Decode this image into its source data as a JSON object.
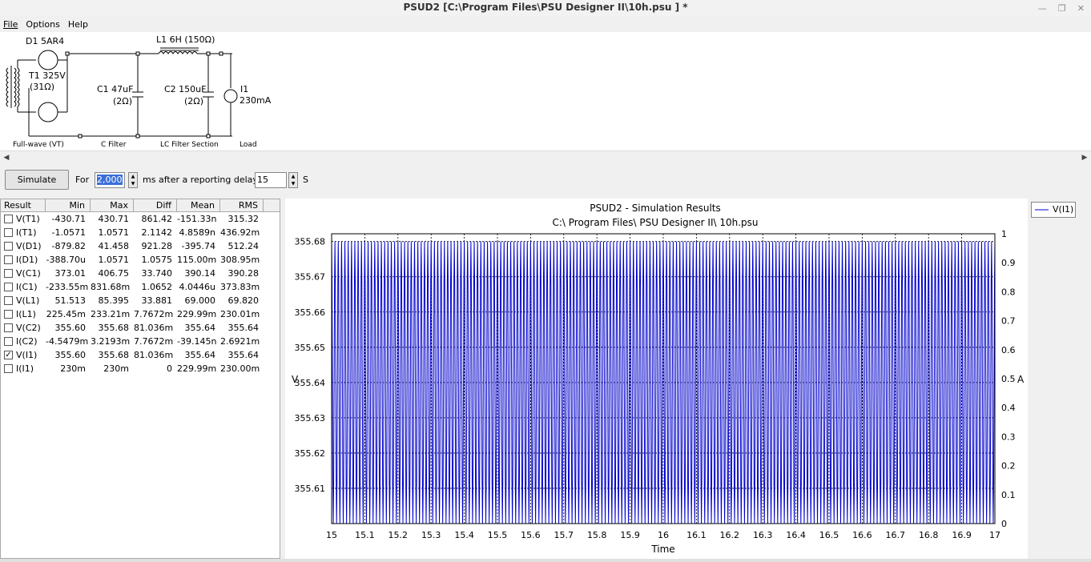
{
  "window": {
    "title": "PSUD2  [C:\\Program Files\\PSU Designer II\\10h.psu ] *"
  },
  "menu": {
    "items": [
      "File",
      "Options",
      "Help"
    ]
  },
  "schematic": {
    "rectifier": {
      "tube_label": "D1 5AR4",
      "transformer_label": "T1 325V",
      "transformer_res": "(31Ω)",
      "section_label": "Full-wave (VT)"
    },
    "c1": {
      "label": "C1 47uF",
      "res": "(2Ω)",
      "section_label": "C Filter"
    },
    "l1": {
      "label": "L1 6H (150Ω)"
    },
    "c2": {
      "label": "C2 150uF",
      "res": "(2Ω)",
      "section_label": "LC Filter Section"
    },
    "load": {
      "label": "I1",
      "value": "230mA",
      "section_label": "Load"
    }
  },
  "toolbar": {
    "simulate_label": "Simulate",
    "for_label": "For",
    "duration_value": "2,000",
    "ms_label": "ms",
    "delay_label": "after a reporting delay of",
    "delay_value": "15",
    "s_label": "S"
  },
  "results": {
    "headers": [
      "Result",
      "Min",
      "Max",
      "Diff",
      "Mean",
      "RMS"
    ],
    "rows": [
      {
        "name": "V(T1)",
        "checked": false,
        "min": "-430.71",
        "max": "430.71",
        "diff": "861.42",
        "mean": "-151.33n",
        "rms": "315.32"
      },
      {
        "name": "I(T1)",
        "checked": false,
        "min": "-1.0571",
        "max": "1.0571",
        "diff": "2.1142",
        "mean": "4.8589n",
        "rms": "436.92m"
      },
      {
        "name": "V(D1)",
        "checked": false,
        "min": "-879.82",
        "max": "41.458",
        "diff": "921.28",
        "mean": "-395.74",
        "rms": "512.24"
      },
      {
        "name": "I(D1)",
        "checked": false,
        "min": "-388.70u",
        "max": "1.0571",
        "diff": "1.0575",
        "mean": "115.00m",
        "rms": "308.95m"
      },
      {
        "name": "V(C1)",
        "checked": false,
        "min": "373.01",
        "max": "406.75",
        "diff": "33.740",
        "mean": "390.14",
        "rms": "390.28"
      },
      {
        "name": "I(C1)",
        "checked": false,
        "min": "-233.55m",
        "max": "831.68m",
        "diff": "1.0652",
        "mean": "4.0446u",
        "rms": "373.83m"
      },
      {
        "name": "V(L1)",
        "checked": false,
        "min": "51.513",
        "max": "85.395",
        "diff": "33.881",
        "mean": "69.000",
        "rms": "69.820"
      },
      {
        "name": "I(L1)",
        "checked": false,
        "min": "225.45m",
        "max": "233.21m",
        "diff": "7.7672m",
        "mean": "229.99m",
        "rms": "230.01m"
      },
      {
        "name": "V(C2)",
        "checked": false,
        "min": "355.60",
        "max": "355.68",
        "diff": "81.036m",
        "mean": "355.64",
        "rms": "355.64"
      },
      {
        "name": "I(C2)",
        "checked": false,
        "min": "-4.5479m",
        "max": "3.2193m",
        "diff": "7.7672m",
        "mean": "-39.145n",
        "rms": "2.6921m"
      },
      {
        "name": "V(I1)",
        "checked": true,
        "min": "355.60",
        "max": "355.68",
        "diff": "81.036m",
        "mean": "355.64",
        "rms": "355.64"
      },
      {
        "name": "I(I1)",
        "checked": false,
        "min": "230m",
        "max": "230m",
        "diff": "0",
        "mean": "229.99m",
        "rms": "230.00m"
      }
    ]
  },
  "chart_data": {
    "type": "line",
    "title": "PSUD2 - Simulation Results",
    "subtitle": "C:\\ Program Files\\ PSU Designer II\\ 10h.psu",
    "xlabel": "Time",
    "ylabel": "V",
    "y2label": "A",
    "xlim": [
      15,
      17
    ],
    "ylim": [
      355.6,
      355.6822
    ],
    "y2lim": [
      0,
      1
    ],
    "xticks": [
      "15",
      "15.1",
      "15.2",
      "15.3",
      "15.4",
      "15.5",
      "15.6",
      "15.7",
      "15.8",
      "15.9",
      "16",
      "16.1",
      "16.2",
      "16.3",
      "16.4",
      "16.5",
      "16.6",
      "16.7",
      "16.8",
      "16.9",
      "17"
    ],
    "yticks": [
      "355.61",
      "355.62",
      "355.63",
      "355.64",
      "355.65",
      "355.66",
      "355.67",
      "355.68"
    ],
    "y2ticks": [
      "0",
      "0.1",
      "0.2",
      "0.3",
      "0.4",
      "0.5",
      "0.6",
      "0.7",
      "0.8",
      "0.9",
      "1"
    ],
    "grid": true,
    "legend": "right",
    "series": [
      {
        "name": "V(I1)",
        "color": "#0000cc",
        "ripple_hz": 100,
        "min": 355.6,
        "max": 355.68
      }
    ]
  },
  "colors": {
    "series": "#0000cc",
    "panel": "#f0f0f0"
  }
}
